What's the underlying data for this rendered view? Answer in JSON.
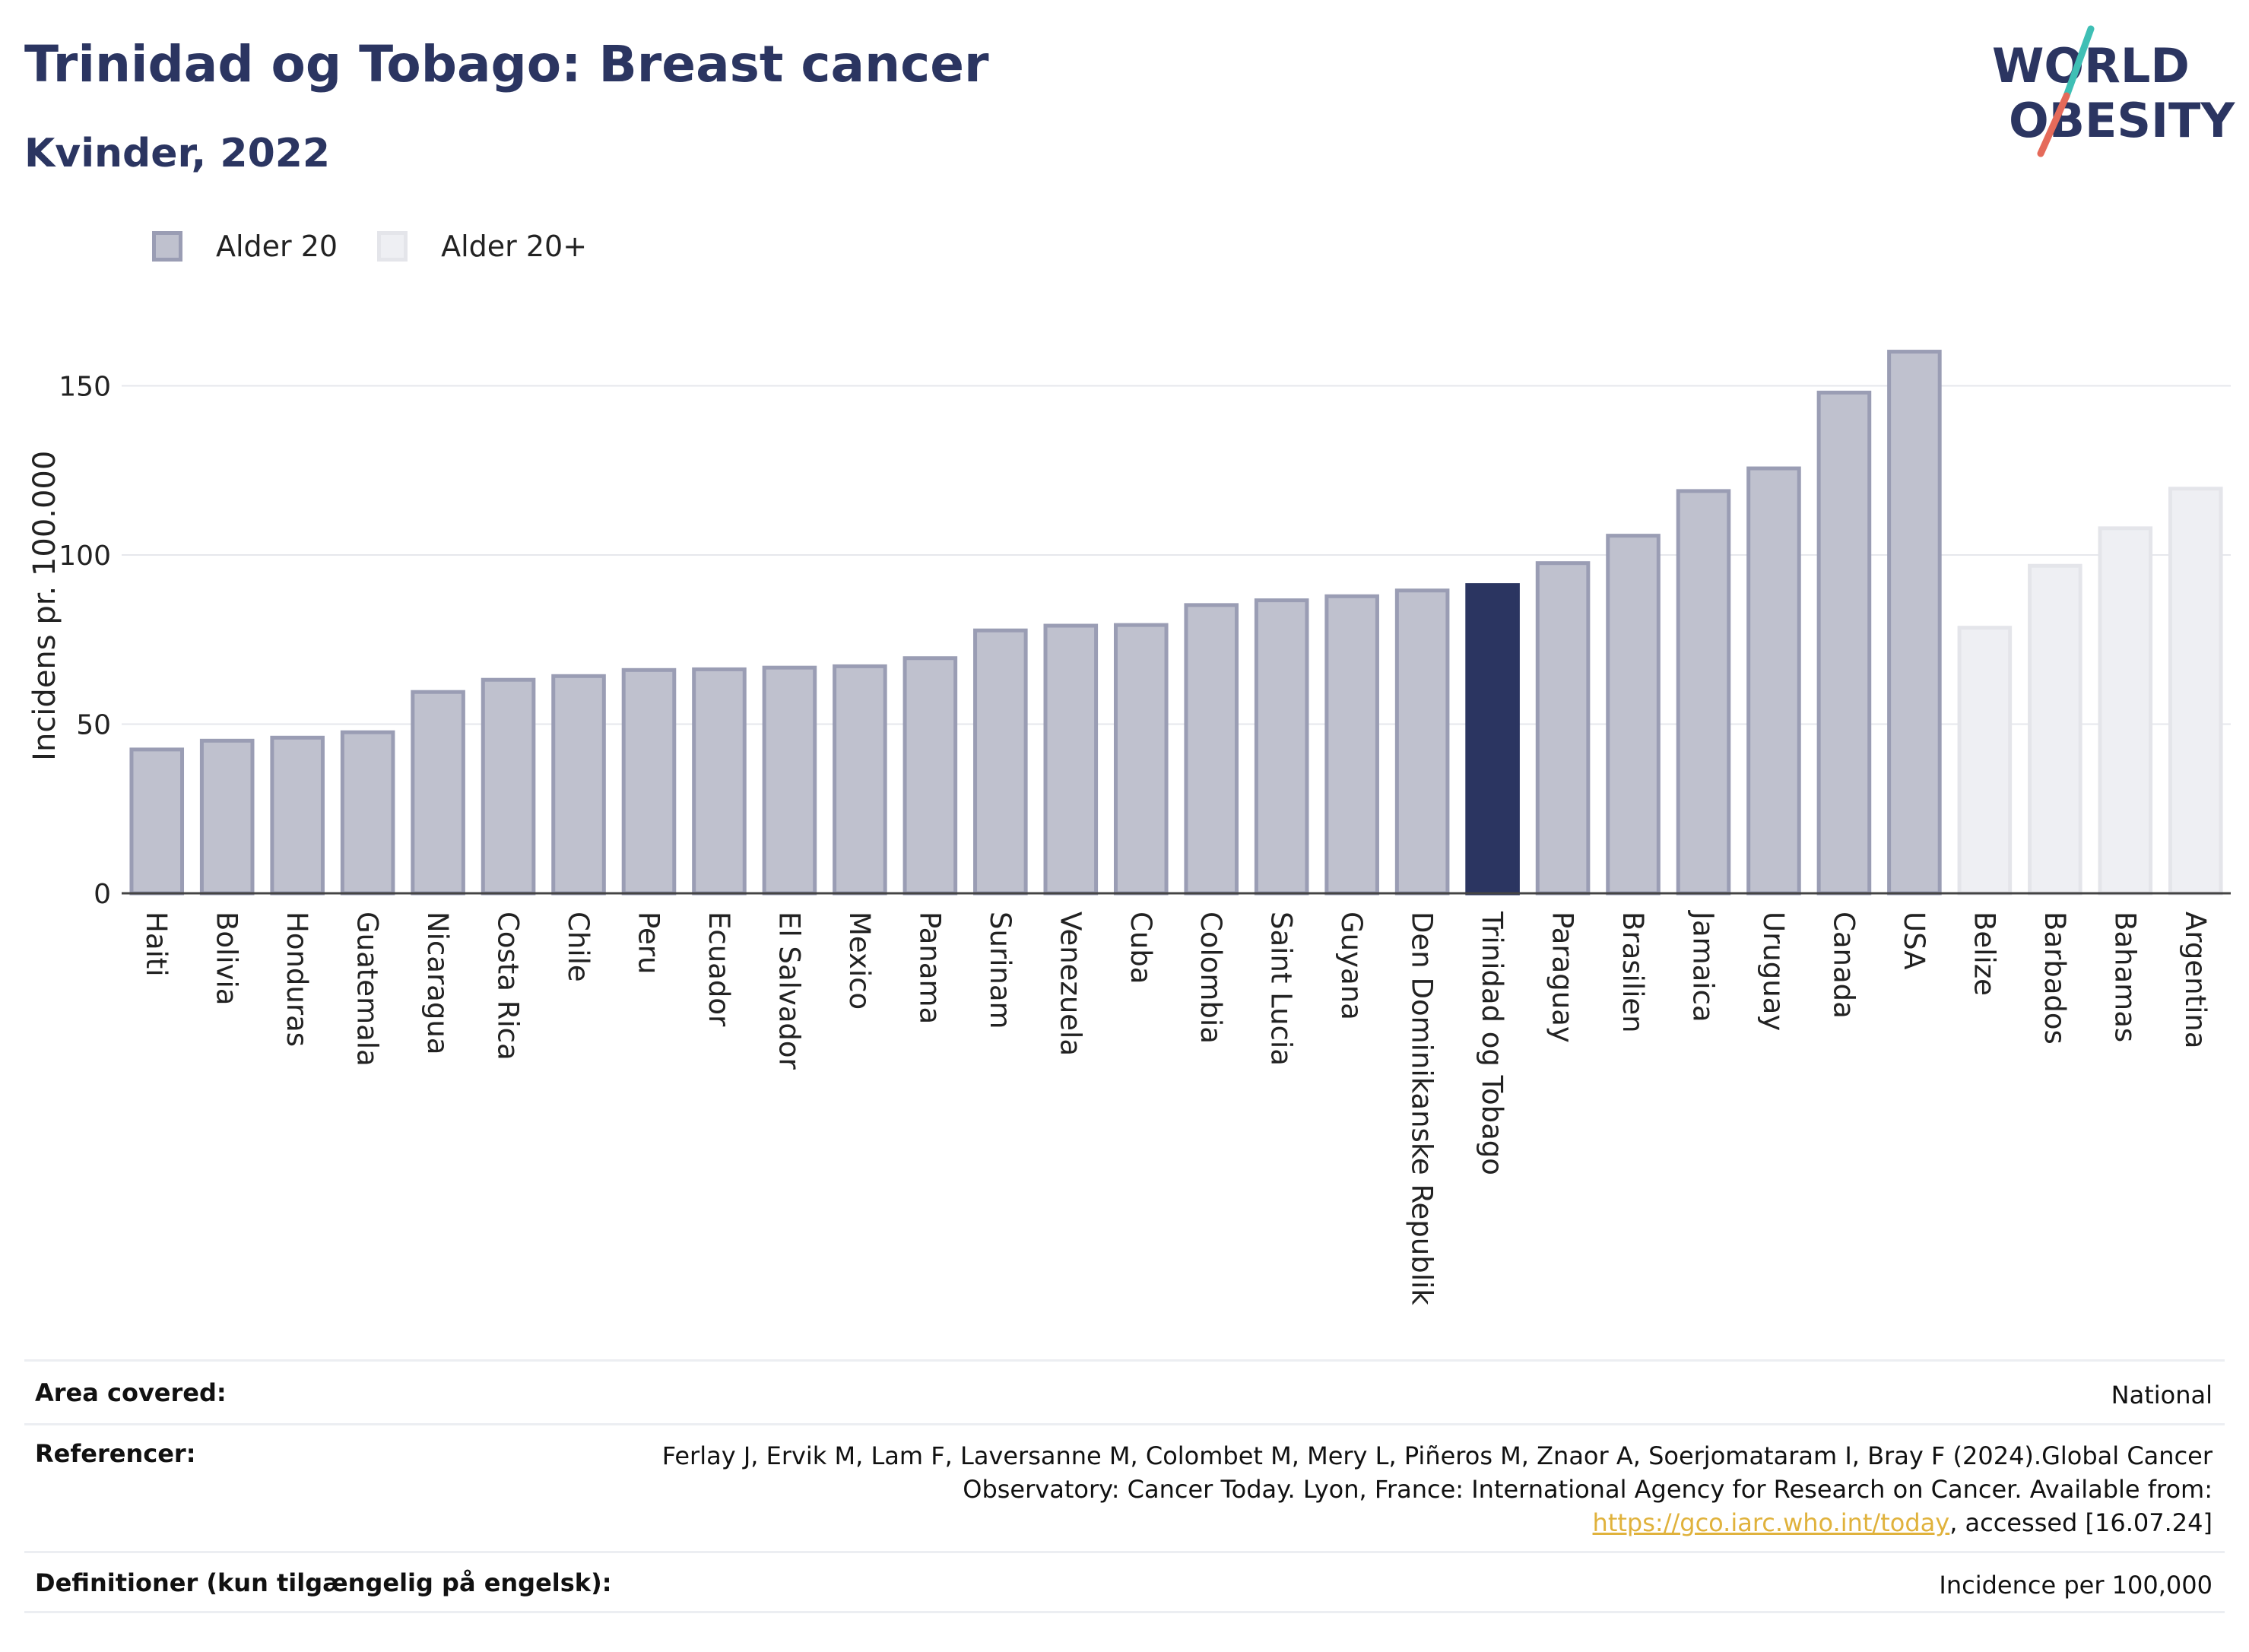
{
  "header": {
    "title": "Trinidad og Tobago: Breast cancer",
    "subtitle": "Kvinder, 2022",
    "logo_text_1": "WORLD",
    "logo_text_2": "OBESITY"
  },
  "legend": {
    "items": [
      {
        "label": "Alder 20",
        "color": "#bfc1ce",
        "border": "#9a9db4"
      },
      {
        "label": "Alder 20+",
        "color": "#eeeff3",
        "border": "#e4e5ea"
      }
    ]
  },
  "chart_data": {
    "type": "bar",
    "title": "Trinidad og Tobago: Breast cancer",
    "subtitle": "Kvinder, 2022",
    "ylabel": "Incidens pr. 100.000",
    "xlabel": "",
    "ylim": [
      0,
      170
    ],
    "yticks": [
      0,
      50,
      100,
      150
    ],
    "grid": true,
    "legend_position": "top-left",
    "highlight": "Trinidad og Tobago",
    "highlight_color": "#2b3561",
    "series": [
      {
        "name": "Alder 20",
        "color": "#bfc1ce",
        "border": "#9a9db4"
      },
      {
        "name": "Alder 20+",
        "color": "#eeeff3",
        "border": "#e4e5ea"
      }
    ],
    "categories": [
      "Haiti",
      "Bolivia",
      "Honduras",
      "Guatemala",
      "Nicaragua",
      "Costa Rica",
      "Chile",
      "Peru",
      "Ecuador",
      "El Salvador",
      "Mexico",
      "Panama",
      "Surinam",
      "Venezuela",
      "Cuba",
      "Colombia",
      "Saint Lucia",
      "Guyana",
      "Den Dominikanske Republik",
      "Trinidad og Tobago",
      "Paraguay",
      "Brasilien",
      "Jamaica",
      "Uruguay",
      "Canada",
      "USA",
      "Belize",
      "Barbados",
      "Bahamas",
      "Argentina"
    ],
    "values": [
      42.5,
      45.1,
      46.0,
      47.6,
      59.5,
      63.1,
      64.2,
      66.0,
      66.2,
      66.7,
      67.1,
      69.5,
      77.7,
      79.1,
      79.3,
      85.2,
      86.6,
      87.8,
      89.5,
      91.1,
      97.6,
      105.7,
      118.9,
      125.6,
      148.0,
      160.1,
      78.5,
      96.8,
      107.9,
      119.6
    ],
    "series_index": [
      0,
      0,
      0,
      0,
      0,
      0,
      0,
      0,
      0,
      0,
      0,
      0,
      0,
      0,
      0,
      0,
      0,
      0,
      0,
      0,
      0,
      0,
      0,
      0,
      0,
      0,
      1,
      1,
      1,
      1
    ]
  },
  "footer": {
    "rows": [
      {
        "label": "Area covered:",
        "value": "National"
      },
      {
        "label": "Referencer:",
        "value_pre": "Ferlay J, Ervik M, Lam F, Laversanne M, Colombet M, Mery L, Piñeros M, Znaor A, Soerjomataram I, Bray F (2024).Global Cancer Observatory: Cancer Today. Lyon, France: International Agency for Research on Cancer. Available from: ",
        "link": "https://gco.iarc.who.int/today",
        "value_post": ", accessed [16.07.24]"
      },
      {
        "label": "Definitioner (kun tilgængelig på engelsk):",
        "value": "Incidence per 100,000"
      }
    ]
  }
}
